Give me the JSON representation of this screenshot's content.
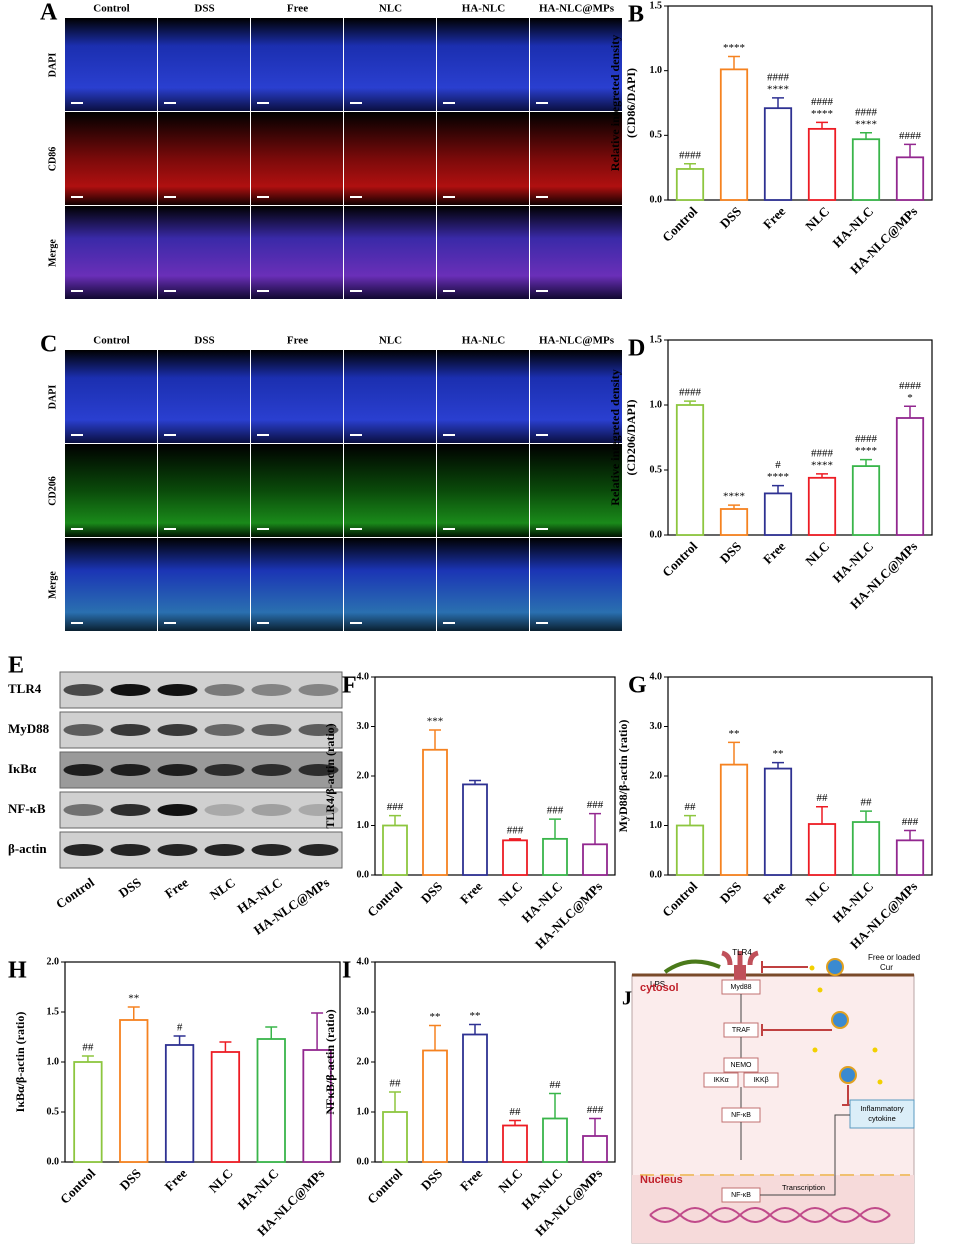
{
  "micrographs": [
    {
      "label": "A",
      "columns": [
        "Control",
        "DSS",
        "Free",
        "NLC",
        "HA-NLC",
        "HA-NLC@MPs"
      ],
      "rows": [
        "DAPI",
        "CD86",
        "Merge"
      ]
    },
    {
      "label": "C",
      "columns": [
        "Control",
        "DSS",
        "Free",
        "NLC",
        "HA-NLC",
        "HA-NLC@MPs"
      ],
      "rows": [
        "DAPI",
        "CD206",
        "Merge"
      ]
    }
  ],
  "blot": {
    "label": "E",
    "rows": [
      "TLR4",
      "MyD88",
      "IκBα",
      "NF-κB",
      "β-actin"
    ],
    "columns": [
      "Control",
      "DSS",
      "Free",
      "NLC",
      "HA-NLC",
      "HA-NLC@MPs"
    ]
  },
  "chart_data": [
    {
      "type": "bar",
      "label": "B",
      "ylabel": [
        "Relative integreted density",
        "(CD86/DAPI)"
      ],
      "categories": [
        "Control",
        "DSS",
        "Free",
        "NLC",
        "HA-NLC",
        "HA-NLC@MPs"
      ],
      "values": [
        0.24,
        1.01,
        0.71,
        0.55,
        0.47,
        0.33
      ],
      "errors": [
        0.04,
        0.1,
        0.08,
        0.05,
        0.05,
        0.1
      ],
      "annotations": [
        [
          "####"
        ],
        [
          "****"
        ],
        [
          "####",
          "****"
        ],
        [
          "####",
          "****"
        ],
        [
          "####",
          "****"
        ],
        [
          "####"
        ]
      ],
      "colors": [
        "#8dc63f",
        "#f58220",
        "#2e3192",
        "#ed1c24",
        "#39b54a",
        "#92278f"
      ],
      "ylim": [
        0,
        1.5
      ],
      "yticks": [
        {
          "value": 0,
          "label": "0.0"
        },
        {
          "value": 0.5,
          "label": "0.5"
        },
        {
          "value": 1,
          "label": "1.0"
        },
        {
          "value": 1.5,
          "label": "1.5"
        }
      ]
    },
    {
      "type": "bar",
      "label": "D",
      "ylabel": [
        "Relative integreted density",
        "(CD206/DAPI)"
      ],
      "categories": [
        "Control",
        "DSS",
        "Free",
        "NLC",
        "HA-NLC",
        "HA-NLC@MPs"
      ],
      "values": [
        1.0,
        0.2,
        0.32,
        0.44,
        0.53,
        0.9
      ],
      "errors": [
        0.03,
        0.03,
        0.06,
        0.03,
        0.05,
        0.09
      ],
      "annotations": [
        [
          "####"
        ],
        [
          "****"
        ],
        [
          "#",
          "****"
        ],
        [
          "####",
          "****"
        ],
        [
          "####",
          "****"
        ],
        [
          "####",
          "*"
        ]
      ],
      "colors": [
        "#8dc63f",
        "#f58220",
        "#2e3192",
        "#ed1c24",
        "#39b54a",
        "#92278f"
      ],
      "ylim": [
        0,
        1.5
      ],
      "yticks": [
        {
          "value": 0,
          "label": "0.0"
        },
        {
          "value": 0.5,
          "label": "0.5"
        },
        {
          "value": 1,
          "label": "1.0"
        },
        {
          "value": 1.5,
          "label": "1.5"
        }
      ]
    },
    {
      "type": "bar",
      "label": "F",
      "ylabel": [
        "TLR4/β-actin (ratio)"
      ],
      "categories": [
        "Control",
        "DSS",
        "Free",
        "NLC",
        "HA-NLC",
        "HA-NLC@MPs"
      ],
      "values": [
        1.0,
        2.53,
        1.83,
        0.7,
        0.73,
        0.62
      ],
      "errors": [
        0.2,
        0.4,
        0.08,
        0.03,
        0.4,
        0.62
      ],
      "annotations": [
        [
          "###"
        ],
        [
          "***"
        ],
        null,
        [
          "###"
        ],
        [
          "###"
        ],
        [
          "###"
        ]
      ],
      "colors": [
        "#8dc63f",
        "#f58220",
        "#2e3192",
        "#ed1c24",
        "#39b54a",
        "#92278f"
      ],
      "ylim": [
        0,
        4
      ],
      "yticks": [
        {
          "value": 0,
          "label": "0.0"
        },
        {
          "value": 1,
          "label": "1.0"
        },
        {
          "value": 2,
          "label": "2.0"
        },
        {
          "value": 3,
          "label": "3.0"
        },
        {
          "value": 4,
          "label": "4.0"
        }
      ]
    },
    {
      "type": "bar",
      "label": "G",
      "ylabel": [
        "MyD88/β-actin (ratio)"
      ],
      "categories": [
        "Control",
        "DSS",
        "Free",
        "NLC",
        "HA-NLC",
        "HA-NLC@MPs"
      ],
      "values": [
        1.0,
        2.23,
        2.15,
        1.03,
        1.07,
        0.7
      ],
      "errors": [
        0.2,
        0.45,
        0.12,
        0.35,
        0.22,
        0.2
      ],
      "annotations": [
        [
          "##"
        ],
        [
          "**"
        ],
        [
          "**"
        ],
        [
          "##"
        ],
        [
          "##"
        ],
        [
          "###"
        ]
      ],
      "colors": [
        "#8dc63f",
        "#f58220",
        "#2e3192",
        "#ed1c24",
        "#39b54a",
        "#92278f"
      ],
      "ylim": [
        0,
        4
      ],
      "yticks": [
        {
          "value": 0,
          "label": "0.0"
        },
        {
          "value": 1,
          "label": "1.0"
        },
        {
          "value": 2,
          "label": "2.0"
        },
        {
          "value": 3,
          "label": "3.0"
        },
        {
          "value": 4,
          "label": "4.0"
        }
      ]
    },
    {
      "type": "bar",
      "label": "H",
      "ylabel": [
        "IκBα/β-actin (ratio)"
      ],
      "categories": [
        "Control",
        "DSS",
        "Free",
        "NLC",
        "HA-NLC",
        "HA-NLC@MPs"
      ],
      "values": [
        1.0,
        1.42,
        1.17,
        1.1,
        1.23,
        1.12
      ],
      "errors": [
        0.06,
        0.13,
        0.09,
        0.1,
        0.12,
        0.37
      ],
      "annotations": [
        [
          "##"
        ],
        [
          "**"
        ],
        [
          "#"
        ],
        null,
        null,
        null
      ],
      "colors": [
        "#8dc63f",
        "#f58220",
        "#2e3192",
        "#ed1c24",
        "#39b54a",
        "#92278f"
      ],
      "ylim": [
        0,
        2
      ],
      "yticks": [
        {
          "value": 0,
          "label": "0.0"
        },
        {
          "value": 0.5,
          "label": "0.5"
        },
        {
          "value": 1,
          "label": "1.0"
        },
        {
          "value": 1.5,
          "label": "1.5"
        },
        {
          "value": 2,
          "label": "2.0"
        }
      ]
    },
    {
      "type": "bar",
      "label": "I",
      "ylabel": [
        "NFκB/β-actin (ratio)"
      ],
      "categories": [
        "Control",
        "DSS",
        "Free",
        "NLC",
        "HA-NLC",
        "HA-NLC@MPs"
      ],
      "values": [
        1.0,
        2.23,
        2.55,
        0.73,
        0.87,
        0.52
      ],
      "errors": [
        0.4,
        0.5,
        0.2,
        0.1,
        0.5,
        0.35
      ],
      "annotations": [
        [
          "##"
        ],
        [
          "**"
        ],
        [
          "**"
        ],
        [
          "##"
        ],
        [
          "##"
        ],
        [
          "###"
        ]
      ],
      "colors": [
        "#8dc63f",
        "#f58220",
        "#2e3192",
        "#ed1c24",
        "#39b54a",
        "#92278f"
      ],
      "ylim": [
        0,
        4
      ],
      "yticks": [
        {
          "value": 0,
          "label": "0.0"
        },
        {
          "value": 1,
          "label": "1.0"
        },
        {
          "value": 2,
          "label": "2.0"
        },
        {
          "value": 3,
          "label": "3.0"
        },
        {
          "value": 4,
          "label": "4.0"
        }
      ]
    }
  ],
  "diagram": {
    "label": "J",
    "tlr4": "TLR4",
    "lps": "LPS",
    "cur": [
      "Free or loaded",
      "Cur"
    ],
    "cytosol": "cytosol",
    "myd88": "Myd88",
    "traf": "TRAF",
    "nemo": "NEMO",
    "ikka": "IKKα",
    "ikkb": "IKKβ",
    "nfkb": "NF-κB",
    "nucleus": "Nucleus",
    "nfkb_nucleus": "NF-κB",
    "transcription": "Transcription",
    "cytokine": [
      "Inflammatory",
      "cytokine"
    ]
  }
}
